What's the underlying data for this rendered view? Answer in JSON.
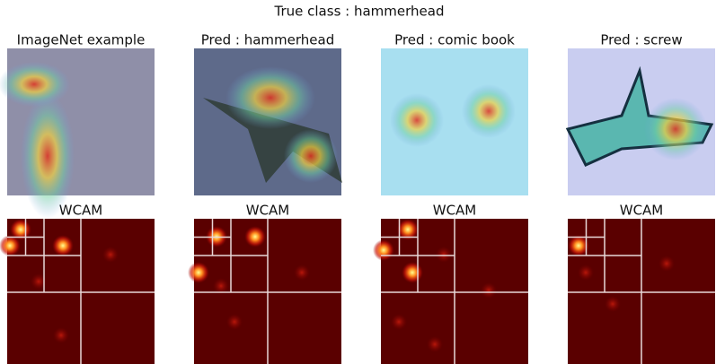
{
  "title": "True class : hammerhead",
  "panels": [
    {
      "title": "ImageNet example",
      "wcam_title": "WCAM"
    },
    {
      "title": "Pred : hammerhead",
      "wcam_title": "WCAM"
    },
    {
      "title": "Pred : comic book",
      "wcam_title": "WCAM"
    },
    {
      "title": "Pred : screw",
      "wcam_title": "WCAM"
    }
  ]
}
